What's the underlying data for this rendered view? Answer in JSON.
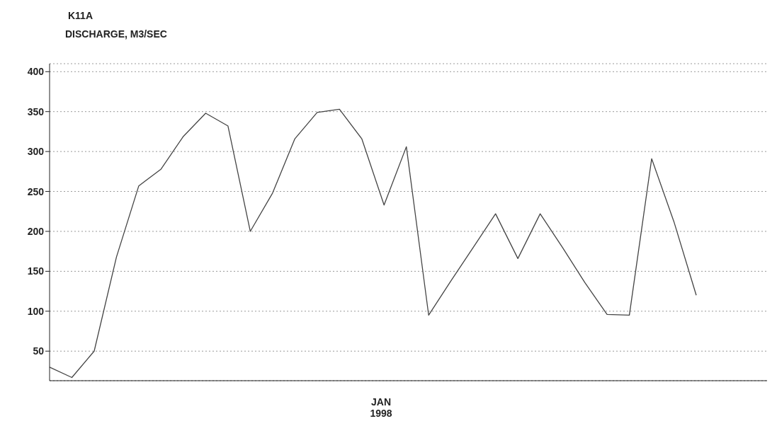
{
  "chart_data": {
    "type": "line",
    "title": "K11A",
    "ylabel": "DISCHARGE, M3/SEC",
    "categories": [
      null,
      null,
      null,
      null,
      null,
      null,
      null,
      null,
      null,
      null,
      null,
      null,
      null,
      null,
      null,
      null,
      null,
      null,
      null,
      null,
      null,
      null,
      null,
      null,
      null,
      null,
      null,
      null,
      null,
      null
    ],
    "series": [
      {
        "color": "#444444",
        "values": [
          30,
          17,
          50,
          168,
          257,
          278,
          319,
          348,
          332,
          200,
          248,
          316,
          349,
          353,
          316,
          233,
          306,
          95,
          138,
          180,
          222,
          166,
          222,
          180,
          136,
          96,
          95,
          291,
          212,
          120
        ]
      }
    ],
    "ylim": [
      13,
      410
    ],
    "yticks": [
      50,
      100,
      150,
      200,
      250,
      300,
      350,
      400
    ],
    "annotations": [
      "JAN 1998"
    ],
    "grid": "y",
    "marker": "none",
    "line_style": "solid"
  }
}
